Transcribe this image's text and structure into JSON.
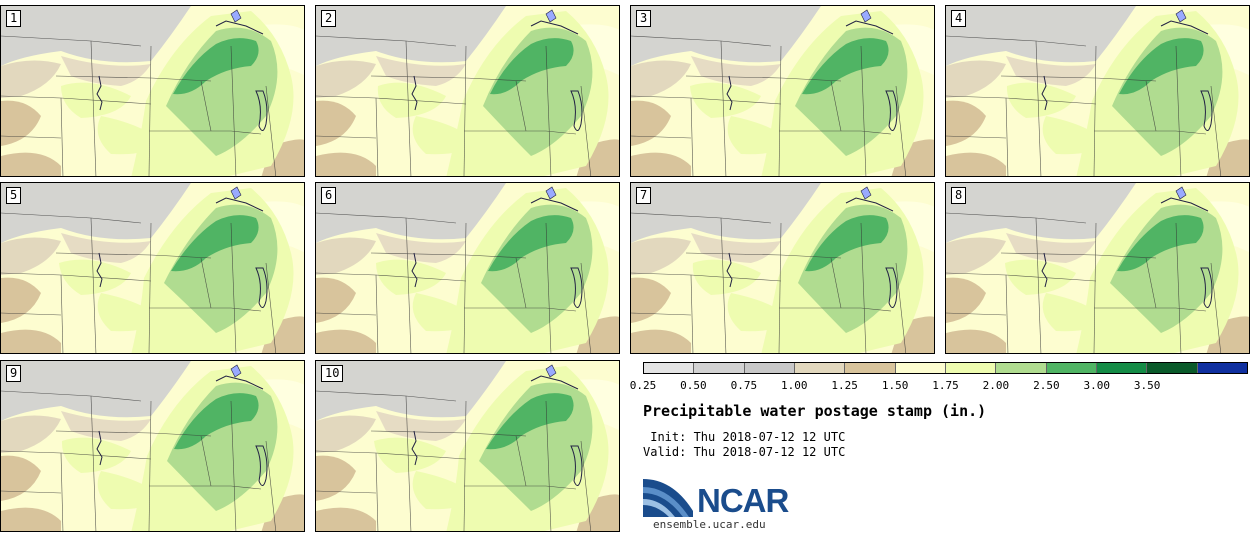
{
  "figure": {
    "title": "Precipitable water postage stamp (in.)",
    "init_text": " Init: Thu 2018-07-12 12 UTC",
    "valid_text": "Valid: Thu 2018-07-12 12 UTC"
  },
  "members": [
    "1",
    "2",
    "3",
    "4",
    "5",
    "6",
    "7",
    "8",
    "9",
    "10"
  ],
  "colorbar": {
    "ticks": [
      "0.25",
      "0.50",
      "0.75",
      "1.00",
      "1.25",
      "1.50",
      "1.75",
      "2.00",
      "2.50",
      "3.00",
      "3.50"
    ],
    "colors": [
      "#e4e4e4",
      "#d2d2d2",
      "#c8c8c8",
      "#e2d8be",
      "#d8c49c",
      "#fdfdd0",
      "#eefcb0",
      "#b0dc90",
      "#50b464",
      "#148c46",
      "#0a5a2a",
      "#1030a0"
    ]
  },
  "logo": {
    "name": "NCAR",
    "url": "ensemble.ucar.edu"
  },
  "chart_data": {
    "type": "heatmap",
    "title": "Precipitable water postage stamp (in.)",
    "units": "in.",
    "ensemble_members": [
      1,
      2,
      3,
      4,
      5,
      6,
      7,
      8,
      9,
      10
    ],
    "init": "Thu 2018-07-12 12 UTC",
    "valid": "Thu 2018-07-12 12 UTC",
    "levels": [
      0.25,
      0.5,
      0.75,
      1.0,
      1.25,
      1.5,
      1.75,
      2.0,
      2.5,
      3.0,
      3.5
    ]
  }
}
